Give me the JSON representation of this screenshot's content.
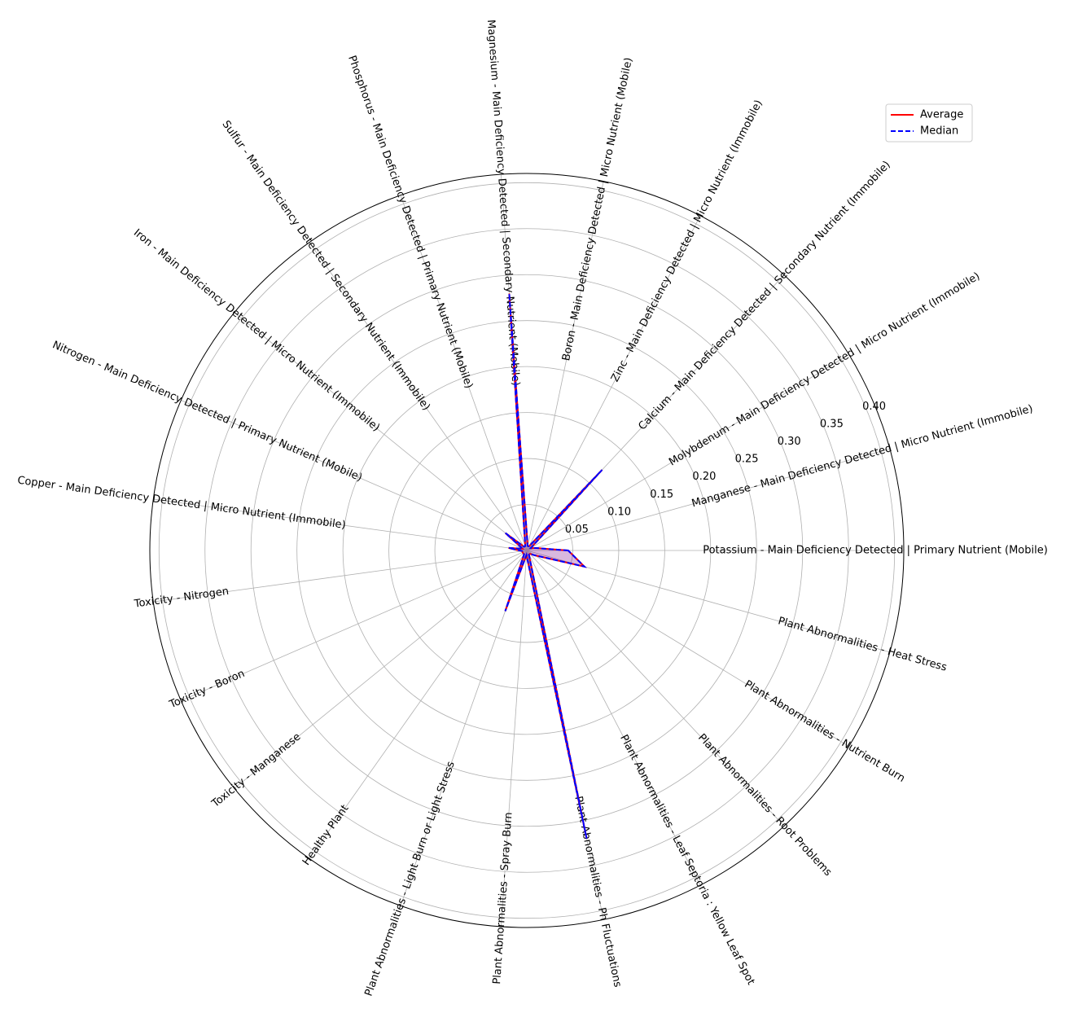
{
  "chart_data": {
    "type": "radar",
    "categories": [
      "Potassium - Main Deficiency Detected | Primary Nutrient (Mobile)",
      "Manganese - Main Deficiency Detected | Micro Nutrient (Immobile)",
      "Molybdenum - Main Deficiency Detected | Micro Nutrient (Immobile)",
      "Calcium - Main Deficiency Detected | Secondary Nutrient (Immobile)",
      "Zinc - Main Deficiency Detected | Micro Nutrient (Immobile)",
      "Boron - Main Deficiency Detected | Micro Nutrient (Mobile)",
      "Magnesium - Main Deficiency Detected | Secondary Nutrient (Mobile)",
      "Phosphorus - Main Deficiency Detected | Primary Nutrient (Mobile)",
      "Sulfur - Main Deficiency Detected | Secondary Nutrient (Immobile)",
      "Iron - Main Deficiency Detected | Micro Nutrient (Immobile)",
      "Nitrogen - Main Deficiency Detected | Primary Nutrient (Mobile)",
      "Copper - Main Deficiency Detected | Micro Nutrient (Immobile)",
      "Toxicity - Nitrogen",
      "Toxicity - Boron",
      "Toxicity - Manganese",
      "Healthy Plant",
      "Plant Abnormalities - Light Burn or Light Stress",
      "Plant Abnormalities - Spray Burn",
      "Plant Abnormalities - Ph Fluctuations",
      "Plant Abnormalities - Leaf Septoria : Yellow Leaf Spot",
      "Plant Abnormalities - Root Problems",
      "Plant Abnormalities - Nutrient Burn",
      "Plant Abnormalities - Heat Stress"
    ],
    "series": [
      {
        "name": "Average",
        "color": "#ff0000",
        "dashed": false,
        "values": [
          0.045,
          0.01,
          0.005,
          0.12,
          0.005,
          0.005,
          0.28,
          0.005,
          0.005,
          0.03,
          0.005,
          0.02,
          0.005,
          0.005,
          0.005,
          0.005,
          0.07,
          0.005,
          0.32,
          0.005,
          0.005,
          0.01,
          0.065
        ]
      },
      {
        "name": "Median",
        "color": "#0000ff",
        "dashed": true,
        "values": [
          0.045,
          0.01,
          0.005,
          0.12,
          0.005,
          0.005,
          0.28,
          0.005,
          0.005,
          0.03,
          0.005,
          0.02,
          0.005,
          0.005,
          0.005,
          0.005,
          0.07,
          0.005,
          0.32,
          0.005,
          0.005,
          0.01,
          0.065
        ]
      }
    ],
    "ylim": [
      0,
      0.41
    ],
    "yticks": [
      {
        "value": 0.05,
        "label": "0.05"
      },
      {
        "value": 0.1,
        "label": "0.10"
      },
      {
        "value": 0.15,
        "label": "0.15"
      },
      {
        "value": 0.2,
        "label": "0.20"
      },
      {
        "value": 0.25,
        "label": "0.25"
      },
      {
        "value": 0.3,
        "label": "0.30"
      },
      {
        "value": 0.35,
        "label": "0.35"
      },
      {
        "value": 0.4,
        "label": "0.40"
      }
    ],
    "grid": true,
    "legend": "upper right"
  }
}
